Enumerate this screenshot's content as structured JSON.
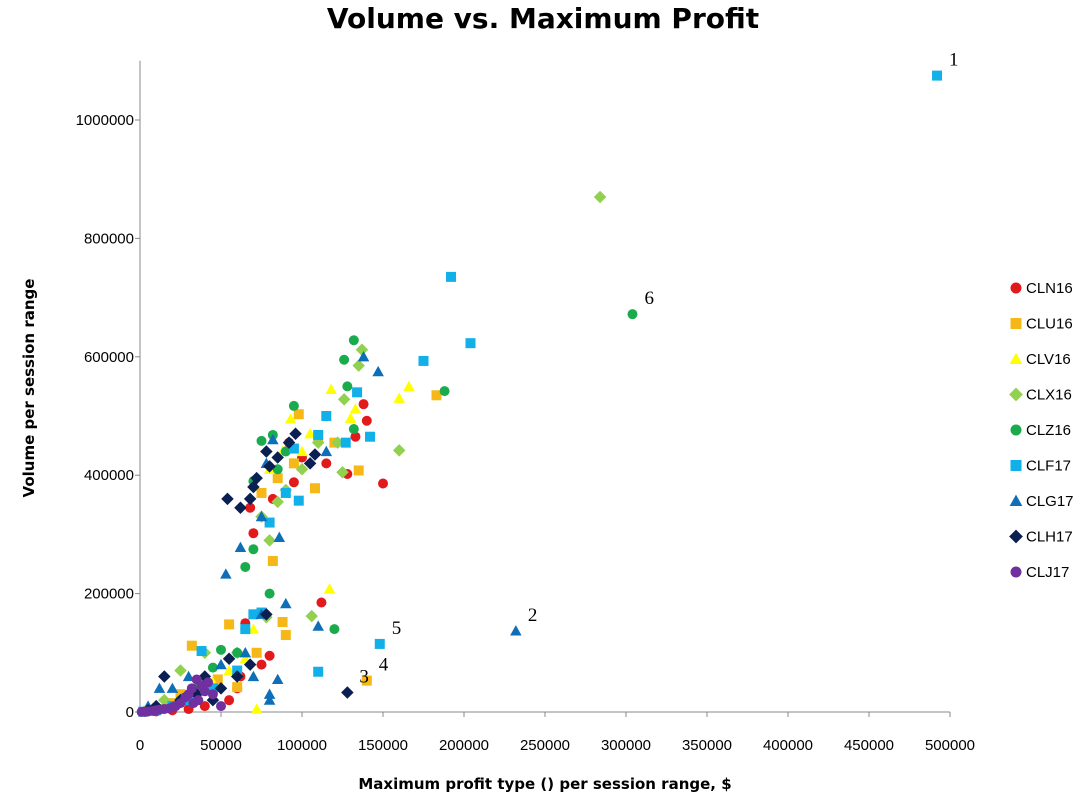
{
  "chart_data": {
    "type": "scatter",
    "title": "Volume vs. Maximum Profit",
    "xlabel": "Maximum profit type () per session range, $",
    "ylabel": "Volume per session range",
    "xlim": [
      0,
      500000
    ],
    "ylim": [
      0,
      1100000
    ],
    "xticks": [
      "0",
      "50000",
      "100000",
      "150000",
      "200000",
      "250000",
      "300000",
      "350000",
      "400000",
      "450000",
      "500000"
    ],
    "yticks": [
      "0",
      "200000",
      "400000",
      "600000",
      "800000",
      "1000000"
    ],
    "xtick_values": [
      0,
      50000,
      100000,
      150000,
      200000,
      250000,
      300000,
      350000,
      400000,
      450000,
      500000
    ],
    "ytick_values": [
      0,
      200000,
      400000,
      600000,
      800000,
      1000000
    ],
    "legend_position": "right",
    "series": [
      {
        "name": "CLN16",
        "marker": "circle",
        "color": "#e31a1c",
        "points": [
          [
            138000,
            520000
          ],
          [
            140000,
            492000
          ],
          [
            150000,
            386000
          ],
          [
            128000,
            402000
          ],
          [
            133000,
            465000
          ],
          [
            115000,
            420000
          ],
          [
            112000,
            185000
          ],
          [
            80000,
            95000
          ],
          [
            65000,
            150000
          ],
          [
            60000,
            40000
          ],
          [
            70000,
            302000
          ],
          [
            68000,
            345000
          ],
          [
            82000,
            360000
          ],
          [
            95000,
            388000
          ],
          [
            100000,
            430000
          ],
          [
            92000,
            455000
          ],
          [
            55000,
            20000
          ],
          [
            40000,
            10000
          ],
          [
            30000,
            5000
          ],
          [
            20000,
            3000
          ],
          [
            10000,
            1000
          ],
          [
            3000,
            500
          ],
          [
            75000,
            80000
          ],
          [
            62000,
            60000
          ]
        ]
      },
      {
        "name": "CLU16",
        "marker": "square",
        "color": "#f5b816",
        "points": [
          [
            183000,
            535000
          ],
          [
            135000,
            408000
          ],
          [
            120000,
            455000
          ],
          [
            108000,
            378000
          ],
          [
            98000,
            503000
          ],
          [
            88000,
            152000
          ],
          [
            90000,
            130000
          ],
          [
            82000,
            255000
          ],
          [
            55000,
            148000
          ],
          [
            32000,
            112000
          ],
          [
            75000,
            370000
          ],
          [
            85000,
            395000
          ],
          [
            140000,
            53000
          ],
          [
            48000,
            55000
          ],
          [
            60000,
            42000
          ],
          [
            72000,
            100000
          ],
          [
            20000,
            15000
          ],
          [
            25000,
            30000
          ],
          [
            12000,
            5000
          ],
          [
            5000,
            2000
          ],
          [
            110000,
            465000
          ],
          [
            95000,
            420000
          ]
        ]
      },
      {
        "name": "CLV16",
        "marker": "triangle",
        "color": "#ffff00",
        "points": [
          [
            166000,
            550000
          ],
          [
            160000,
            530000
          ],
          [
            133000,
            512000
          ],
          [
            130000,
            496000
          ],
          [
            118000,
            545000
          ],
          [
            117000,
            208000
          ],
          [
            93000,
            495000
          ],
          [
            88000,
            440000
          ],
          [
            80000,
            410000
          ],
          [
            72000,
            5000
          ],
          [
            70000,
            140000
          ],
          [
            65000,
            90000
          ],
          [
            55000,
            70000
          ],
          [
            45000,
            50000
          ],
          [
            35000,
            25000
          ],
          [
            100000,
            440000
          ],
          [
            105000,
            470000
          ],
          [
            30000,
            20000
          ]
        ]
      },
      {
        "name": "CLX16",
        "marker": "diamond",
        "color": "#92d050",
        "points": [
          [
            284000,
            870000
          ],
          [
            160000,
            442000
          ],
          [
            137000,
            612000
          ],
          [
            135000,
            585000
          ],
          [
            126000,
            528000
          ],
          [
            125000,
            405000
          ],
          [
            122000,
            455000
          ],
          [
            106000,
            162000
          ],
          [
            80000,
            290000
          ],
          [
            78000,
            160000
          ],
          [
            75000,
            330000
          ],
          [
            60000,
            100000
          ],
          [
            40000,
            100000
          ],
          [
            25000,
            70000
          ],
          [
            15000,
            20000
          ],
          [
            8000,
            5000
          ],
          [
            85000,
            355000
          ],
          [
            90000,
            375000
          ],
          [
            110000,
            455000
          ],
          [
            100000,
            410000
          ]
        ]
      },
      {
        "name": "CLZ16",
        "marker": "circle",
        "color": "#1aab4c",
        "points": [
          [
            304000,
            672000
          ],
          [
            188000,
            542000
          ],
          [
            132000,
            628000
          ],
          [
            126000,
            595000
          ],
          [
            128000,
            550000
          ],
          [
            132000,
            478000
          ],
          [
            120000,
            140000
          ],
          [
            95000,
            517000
          ],
          [
            82000,
            468000
          ],
          [
            75000,
            458000
          ],
          [
            70000,
            275000
          ],
          [
            65000,
            245000
          ],
          [
            80000,
            200000
          ],
          [
            65000,
            140000
          ],
          [
            60000,
            100000
          ],
          [
            50000,
            105000
          ],
          [
            45000,
            75000
          ],
          [
            35000,
            40000
          ],
          [
            25000,
            20000
          ],
          [
            20000,
            10000
          ],
          [
            10000,
            3000
          ],
          [
            90000,
            440000
          ],
          [
            85000,
            410000
          ],
          [
            70000,
            390000
          ]
        ]
      },
      {
        "name": "CLF17",
        "marker": "square",
        "color": "#12b0e8",
        "points": [
          [
            492000,
            1075000
          ],
          [
            192000,
            735000
          ],
          [
            204000,
            623000
          ],
          [
            175000,
            593000
          ],
          [
            142000,
            465000
          ],
          [
            134000,
            540000
          ],
          [
            127000,
            455000
          ],
          [
            115000,
            500000
          ],
          [
            110000,
            468000
          ],
          [
            95000,
            445000
          ],
          [
            98000,
            357000
          ],
          [
            90000,
            370000
          ],
          [
            80000,
            320000
          ],
          [
            70000,
            165000
          ],
          [
            75000,
            168000
          ],
          [
            65000,
            140000
          ],
          [
            60000,
            70000
          ],
          [
            148000,
            115000
          ],
          [
            110000,
            68000
          ],
          [
            38000,
            103000
          ],
          [
            45000,
            40000
          ],
          [
            30000,
            20000
          ],
          [
            20000,
            10000
          ],
          [
            10000,
            3000
          ],
          [
            2000,
            500
          ]
        ]
      },
      {
        "name": "CLG17",
        "marker": "triangle",
        "color": "#0e6eb8",
        "points": [
          [
            232000,
            137000
          ],
          [
            147000,
            575000
          ],
          [
            138000,
            600000
          ],
          [
            115000,
            440000
          ],
          [
            110000,
            145000
          ],
          [
            90000,
            183000
          ],
          [
            86000,
            295000
          ],
          [
            82000,
            460000
          ],
          [
            78000,
            420000
          ],
          [
            75000,
            330000
          ],
          [
            62000,
            278000
          ],
          [
            53000,
            233000
          ],
          [
            80000,
            30000
          ],
          [
            80000,
            20000
          ],
          [
            85000,
            55000
          ],
          [
            75000,
            165000
          ],
          [
            65000,
            100000
          ],
          [
            50000,
            80000
          ],
          [
            40000,
            50000
          ],
          [
            30000,
            60000
          ],
          [
            20000,
            40000
          ],
          [
            12000,
            40000
          ],
          [
            5000,
            10000
          ],
          [
            70000,
            60000
          ]
        ]
      },
      {
        "name": "CLH17",
        "marker": "diamond",
        "color": "#0a1f52",
        "points": [
          [
            128000,
            33000
          ],
          [
            108000,
            435000
          ],
          [
            105000,
            420000
          ],
          [
            96000,
            470000
          ],
          [
            92000,
            455000
          ],
          [
            85000,
            430000
          ],
          [
            80000,
            415000
          ],
          [
            78000,
            440000
          ],
          [
            72000,
            395000
          ],
          [
            70000,
            380000
          ],
          [
            68000,
            360000
          ],
          [
            62000,
            345000
          ],
          [
            54000,
            360000
          ],
          [
            78000,
            165000
          ],
          [
            68000,
            80000
          ],
          [
            60000,
            60000
          ],
          [
            50000,
            40000
          ],
          [
            40000,
            60000
          ],
          [
            35000,
            30000
          ],
          [
            25000,
            20000
          ],
          [
            15000,
            60000
          ],
          [
            10000,
            10000
          ],
          [
            5000,
            3000
          ],
          [
            55000,
            90000
          ],
          [
            45000,
            20000
          ]
        ]
      },
      {
        "name": "CLJ17",
        "marker": "circle",
        "color": "#7030a0",
        "points": [
          [
            35000,
            55000
          ],
          [
            32000,
            40000
          ],
          [
            30000,
            30000
          ],
          [
            28000,
            25000
          ],
          [
            25000,
            15000
          ],
          [
            22000,
            10000
          ],
          [
            20000,
            8000
          ],
          [
            18000,
            6000
          ],
          [
            15000,
            5000
          ],
          [
            12000,
            4000
          ],
          [
            10000,
            3000
          ],
          [
            8000,
            2000
          ],
          [
            5000,
            1000
          ],
          [
            3000,
            500
          ],
          [
            1000,
            200
          ],
          [
            38000,
            45000
          ],
          [
            40000,
            35000
          ],
          [
            36000,
            20000
          ],
          [
            33000,
            15000
          ],
          [
            42000,
            50000
          ],
          [
            45000,
            30000
          ],
          [
            50000,
            10000
          ]
        ]
      }
    ],
    "annotations": [
      {
        "text": "1",
        "x": 492000,
        "y": 1075000
      },
      {
        "text": "2",
        "x": 232000,
        "y": 137000
      },
      {
        "text": "3",
        "x": 128000,
        "y": 33000
      },
      {
        "text": "4",
        "x": 140000,
        "y": 53000
      },
      {
        "text": "5",
        "x": 148000,
        "y": 115000
      },
      {
        "text": "6",
        "x": 304000,
        "y": 672000
      }
    ]
  }
}
